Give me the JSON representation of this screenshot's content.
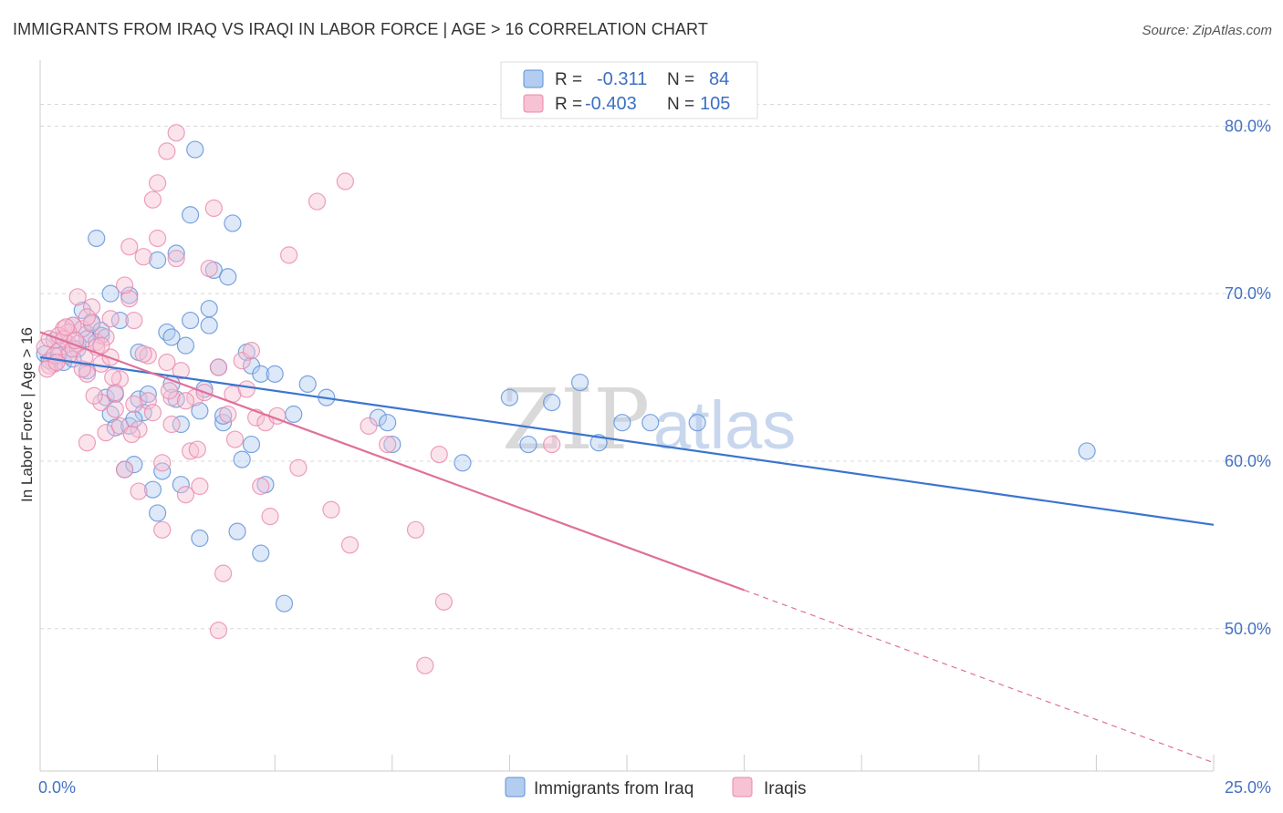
{
  "title": "IMMIGRANTS FROM IRAQ VS IRAQI IN LABOR FORCE | AGE > 16 CORRELATION CHART",
  "source": "Source: ZipAtlas.com",
  "watermark": {
    "zip": "ZIP",
    "atlas": "atlas"
  },
  "colors": {
    "blue": "#5b8fd6",
    "blue_fill": "#b3cdf0",
    "blue_line": "#3a75d0",
    "pink": "#e888ab",
    "pink_fill": "#f6c2d4",
    "pink_line": "#e07098",
    "grid": "#d8d8d8",
    "tick_text": "#4472c4"
  },
  "legend_stats": [
    {
      "r_label": "R =",
      "r_value": "-0.311",
      "n_label": "N =",
      "n_value": "84"
    },
    {
      "r_label": "R =",
      "r_value": "-0.403",
      "n_label": "N =",
      "n_value": "105"
    }
  ],
  "chart_data": {
    "type": "scatter",
    "ylabel": "In Labor Force | Age > 16",
    "xlim": [
      0,
      25
    ],
    "ylim": [
      41.5,
      83.5
    ],
    "x_tick_labels": [
      "0.0%",
      "25.0%"
    ],
    "y_ticks": [
      50,
      60,
      70,
      80
    ],
    "y_tick_labels": [
      "50.0%",
      "60.0%",
      "70.0%",
      "80.0%"
    ],
    "grid": true,
    "legend_position": "bottom-center",
    "series": [
      {
        "name": "Immigrants from Iraq",
        "color": "blue",
        "trend": {
          "x": [
            0,
            25
          ],
          "y": [
            66.2,
            56.2
          ]
        },
        "points": [
          [
            0.1,
            66.4
          ],
          [
            0.2,
            66.0
          ],
          [
            0.3,
            67.2
          ],
          [
            0.4,
            66.3
          ],
          [
            0.5,
            65.9
          ],
          [
            0.6,
            67.0
          ],
          [
            0.7,
            68.1
          ],
          [
            0.8,
            66.7
          ],
          [
            0.9,
            69.0
          ],
          [
            1.0,
            67.6
          ],
          [
            1.0,
            65.4
          ],
          [
            1.1,
            68.3
          ],
          [
            1.2,
            73.3
          ],
          [
            1.3,
            67.5
          ],
          [
            1.3,
            67.8
          ],
          [
            1.4,
            63.8
          ],
          [
            1.5,
            62.8
          ],
          [
            1.5,
            70.0
          ],
          [
            1.6,
            62.0
          ],
          [
            1.7,
            68.4
          ],
          [
            1.8,
            59.5
          ],
          [
            1.9,
            69.9
          ],
          [
            1.9,
            62.1
          ],
          [
            2.0,
            59.8
          ],
          [
            2.1,
            66.5
          ],
          [
            2.1,
            63.7
          ],
          [
            2.2,
            62.9
          ],
          [
            2.3,
            64.0
          ],
          [
            2.4,
            58.3
          ],
          [
            2.5,
            56.9
          ],
          [
            2.5,
            72.0
          ],
          [
            2.6,
            59.4
          ],
          [
            2.7,
            67.7
          ],
          [
            2.8,
            67.4
          ],
          [
            2.8,
            64.6
          ],
          [
            2.9,
            63.7
          ],
          [
            2.9,
            72.4
          ],
          [
            3.0,
            58.6
          ],
          [
            3.1,
            66.9
          ],
          [
            3.2,
            68.4
          ],
          [
            3.2,
            74.7
          ],
          [
            3.3,
            78.6
          ],
          [
            3.4,
            55.4
          ],
          [
            3.4,
            63.0
          ],
          [
            3.5,
            64.3
          ],
          [
            3.6,
            68.1
          ],
          [
            3.6,
            69.1
          ],
          [
            3.7,
            71.4
          ],
          [
            3.8,
            65.6
          ],
          [
            3.9,
            62.3
          ],
          [
            3.9,
            62.7
          ],
          [
            4.0,
            71.0
          ],
          [
            4.1,
            74.2
          ],
          [
            4.2,
            55.8
          ],
          [
            4.3,
            60.1
          ],
          [
            4.4,
            66.5
          ],
          [
            4.5,
            65.7
          ],
          [
            4.5,
            61.0
          ],
          [
            4.7,
            65.2
          ],
          [
            4.7,
            54.5
          ],
          [
            4.8,
            58.6
          ],
          [
            5.0,
            65.2
          ],
          [
            5.2,
            51.5
          ],
          [
            5.4,
            62.8
          ],
          [
            5.7,
            64.6
          ],
          [
            6.1,
            63.8
          ],
          [
            7.2,
            62.6
          ],
          [
            7.4,
            62.3
          ],
          [
            7.5,
            61.0
          ],
          [
            9.0,
            59.9
          ],
          [
            10.0,
            63.8
          ],
          [
            10.4,
            61.0
          ],
          [
            10.9,
            63.5
          ],
          [
            11.5,
            64.7
          ],
          [
            11.9,
            61.1
          ],
          [
            12.4,
            62.3
          ],
          [
            13.0,
            62.3
          ],
          [
            14.0,
            62.3
          ],
          [
            22.3,
            60.6
          ],
          [
            1.0,
            67.3
          ],
          [
            1.6,
            64.0
          ],
          [
            2.0,
            62.5
          ],
          [
            3.0,
            62.2
          ],
          [
            0.7,
            66.1
          ]
        ]
      },
      {
        "name": "Iraqis",
        "color": "pink",
        "trend": {
          "x": [
            0,
            15
          ],
          "y": [
            67.7,
            52.3
          ]
        },
        "trend_dashed": {
          "x": [
            15,
            25
          ],
          "y": [
            52.3,
            42.0
          ]
        },
        "points": [
          [
            0.1,
            66.8
          ],
          [
            0.2,
            67.3
          ],
          [
            0.3,
            65.8
          ],
          [
            0.4,
            66.6
          ],
          [
            0.5,
            67.9
          ],
          [
            0.6,
            66.3
          ],
          [
            0.7,
            68.1
          ],
          [
            0.8,
            69.8
          ],
          [
            0.9,
            67.9
          ],
          [
            1.0,
            61.1
          ],
          [
            1.0,
            65.2
          ],
          [
            1.1,
            69.2
          ],
          [
            1.2,
            67.1
          ],
          [
            1.3,
            65.8
          ],
          [
            1.3,
            63.5
          ],
          [
            1.4,
            61.7
          ],
          [
            1.5,
            66.2
          ],
          [
            1.5,
            68.5
          ],
          [
            1.6,
            63.1
          ],
          [
            1.7,
            64.9
          ],
          [
            1.8,
            59.5
          ],
          [
            1.9,
            69.7
          ],
          [
            1.9,
            72.8
          ],
          [
            2.0,
            68.4
          ],
          [
            2.1,
            61.9
          ],
          [
            2.1,
            58.2
          ],
          [
            2.2,
            72.2
          ],
          [
            2.3,
            63.6
          ],
          [
            2.4,
            75.6
          ],
          [
            2.5,
            76.6
          ],
          [
            2.5,
            73.3
          ],
          [
            2.6,
            55.9
          ],
          [
            2.7,
            78.5
          ],
          [
            2.7,
            65.9
          ],
          [
            2.8,
            63.8
          ],
          [
            2.9,
            72.1
          ],
          [
            2.9,
            79.6
          ],
          [
            3.0,
            65.4
          ],
          [
            3.1,
            58.0
          ],
          [
            3.2,
            60.6
          ],
          [
            3.3,
            63.8
          ],
          [
            3.4,
            58.5
          ],
          [
            3.5,
            64.1
          ],
          [
            3.6,
            71.5
          ],
          [
            3.7,
            75.1
          ],
          [
            3.8,
            65.6
          ],
          [
            3.8,
            49.9
          ],
          [
            3.9,
            53.3
          ],
          [
            4.0,
            62.8
          ],
          [
            4.1,
            64.0
          ],
          [
            4.3,
            66.0
          ],
          [
            4.4,
            64.3
          ],
          [
            4.5,
            66.6
          ],
          [
            4.6,
            62.6
          ],
          [
            4.7,
            58.5
          ],
          [
            4.8,
            62.3
          ],
          [
            4.9,
            56.7
          ],
          [
            5.3,
            72.3
          ],
          [
            5.5,
            59.6
          ],
          [
            5.9,
            75.5
          ],
          [
            6.2,
            57.1
          ],
          [
            6.5,
            76.7
          ],
          [
            6.6,
            55.0
          ],
          [
            7.0,
            62.1
          ],
          [
            7.4,
            61.0
          ],
          [
            8.0,
            55.9
          ],
          [
            8.2,
            47.8
          ],
          [
            8.5,
            60.4
          ],
          [
            8.6,
            51.6
          ],
          [
            10.9,
            61.0
          ],
          [
            0.2,
            65.7
          ],
          [
            0.6,
            67.7
          ],
          [
            1.1,
            68.2
          ],
          [
            1.4,
            67.4
          ],
          [
            1.8,
            70.5
          ],
          [
            0.3,
            66.3
          ],
          [
            0.9,
            65.5
          ],
          [
            1.6,
            64.1
          ],
          [
            2.3,
            66.3
          ],
          [
            2.6,
            59.9
          ],
          [
            3.1,
            63.6
          ],
          [
            0.4,
            67.5
          ],
          [
            0.8,
            67.0
          ],
          [
            1.2,
            66.8
          ],
          [
            1.7,
            62.1
          ],
          [
            2.0,
            63.4
          ],
          [
            2.4,
            62.9
          ],
          [
            0.5,
            67.3
          ],
          [
            0.7,
            66.7
          ],
          [
            1.0,
            68.6
          ],
          [
            1.3,
            66.9
          ],
          [
            2.2,
            66.4
          ],
          [
            2.8,
            62.2
          ],
          [
            0.15,
            65.5
          ],
          [
            0.35,
            65.9
          ],
          [
            0.55,
            68.0
          ],
          [
            0.75,
            67.2
          ],
          [
            0.95,
            66.2
          ],
          [
            1.15,
            63.9
          ],
          [
            1.55,
            65.0
          ],
          [
            1.95,
            61.6
          ],
          [
            2.75,
            64.2
          ],
          [
            3.35,
            60.7
          ],
          [
            4.15,
            61.3
          ],
          [
            5.05,
            62.7
          ]
        ]
      }
    ]
  }
}
